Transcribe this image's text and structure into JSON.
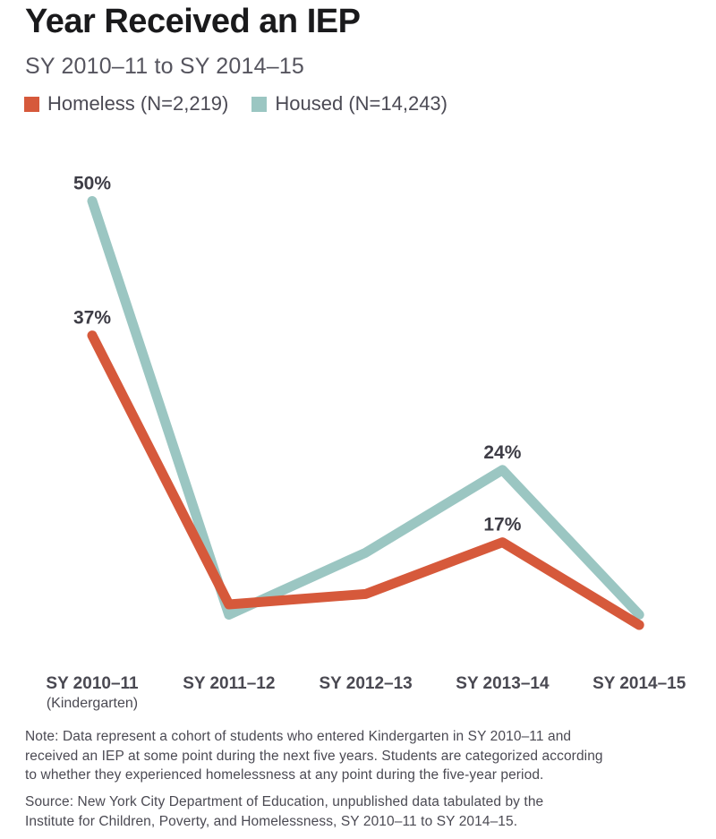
{
  "title": "Year Received an IEP",
  "subtitle": "SY 2010–11 to SY 2014–15",
  "legend": {
    "homeless": {
      "label": "Homeless (N=2,219)",
      "color": "#d6593b"
    },
    "housed": {
      "label": "Housed (N=14,243)",
      "color": "#9bc6c2"
    }
  },
  "chart_data": {
    "type": "line",
    "categories": [
      "SY 2010–11",
      "SY 2011–12",
      "SY 2012–13",
      "SY 2013–14",
      "SY 2014–15"
    ],
    "first_category_note": "(Kindergarten)",
    "unit": "%",
    "ylim": [
      0,
      55
    ],
    "grid": false,
    "legend_position": "top",
    "series": [
      {
        "name": "Housed (N=14,243)",
        "color": "#9bc6c2",
        "values": [
          50,
          10,
          16,
          24,
          10
        ],
        "point_labels": [
          {
            "index": 0,
            "text": "50%"
          },
          {
            "index": 3,
            "text": "24%"
          }
        ]
      },
      {
        "name": "Homeless (N=2,219)",
        "color": "#d6593b",
        "values": [
          37,
          11,
          12,
          17,
          9
        ],
        "point_labels": [
          {
            "index": 0,
            "text": "37%"
          },
          {
            "index": 3,
            "text": "17%"
          }
        ]
      }
    ]
  },
  "note": "Note: Data represent a cohort of students who entered Kindergarten in SY 2010–11 and\nreceived an IEP at some point during the next five years. Students are categorized according\nto whether they experienced homelessness at any point during the five-year period.",
  "source": "Source: New York City Department of Education, unpublished data tabulated by the\nInstitute for Children, Poverty, and Homelessness, SY 2010–11 to SY 2014–15."
}
